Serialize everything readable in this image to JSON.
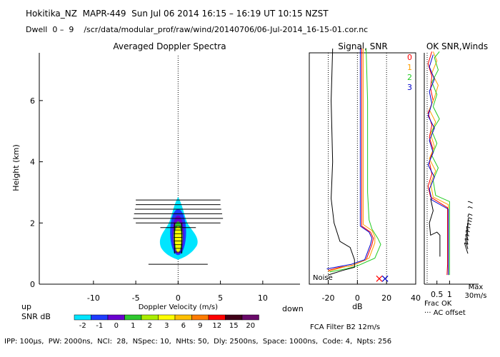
{
  "header": {
    "title": "Hokitika_NZ  MAPR-449  Sun Jul 06 2014 16:15 – 16:19 UT 10:15 NZST",
    "dwell": "Dwell  0 –  9    /scr/data/modular_prof/raw/wind/20140706/06-Jul-2014_16-15-01.cor.nc"
  },
  "colors": {
    "snr_scale": [
      "#00e5ff",
      "#1e3cff",
      "#6a00d0",
      "#2ec82e",
      "#aaee00",
      "#ffff00",
      "#ffc000",
      "#ff7b00",
      "#ff0000",
      "#400018",
      "#6a0a6a"
    ],
    "series": [
      "#ff0000",
      "#ffa000",
      "#22cc22",
      "#0000cc"
    ]
  },
  "labels": {
    "spectra_title": "Averaged Doppler Spectra",
    "signal_title": "Signal, SNR",
    "ok_title": "OK SNR,Winds",
    "up": "up",
    "down": "down",
    "snr_db": "SNR dB",
    "doppler_xlabel": "Doppler Velocity (m/s)",
    "height_ylabel": "Height (km)",
    "db_xlabel": "dB",
    "noise": "Noise",
    "frac_ok": "Frac OK",
    "ac_offset": "··· AC offset",
    "max": "Max",
    "max_speed": "30m/s",
    "fca_filter": "FCA Filter B2 12m/s"
  },
  "footer": "IPP: 100μs,  PW: 2000ns,  NCI:  28,  NSpec: 10,  NHts: 50,  Dly: 2500ns,  Space: 1000ns,  Code: 4,  Npts: 256",
  "chart_data": [
    {
      "type": "heatmap",
      "title": "Averaged Doppler Spectra",
      "xlabel": "Doppler Velocity (m/s)",
      "ylabel": "Height (km)",
      "xlim": [
        -16.4,
        14.4
      ],
      "ylim": [
        0,
        7.7
      ],
      "xticks": [
        -10,
        -5,
        0,
        5,
        10
      ],
      "yticks": [
        0,
        2,
        4,
        6
      ],
      "left_label": "up",
      "right_label": "down",
      "colorbar": {
        "label": "SNR dB",
        "ticks": [
          "-2",
          "-1",
          "0",
          "1",
          "2",
          "3",
          "6",
          "9",
          "12",
          "15",
          "20"
        ]
      },
      "spectra_widths": [
        {
          "height": 0.65,
          "half_width": 3.5
        },
        {
          "height": 1.85,
          "half_width": 2.1
        },
        {
          "height": 2.0,
          "half_width": 5.0
        },
        {
          "height": 2.15,
          "half_width": 5.3
        },
        {
          "height": 2.3,
          "half_width": 5.2
        },
        {
          "height": 2.45,
          "half_width": 5.1
        },
        {
          "height": 2.6,
          "half_width": 5.0
        },
        {
          "height": 2.75,
          "half_width": 5.0
        }
      ],
      "zero_line": 0
    },
    {
      "type": "line",
      "title": "Signal, SNR",
      "xlabel": "dB",
      "xlim": [
        -33,
        40
      ],
      "ylim": [
        0,
        7.7
      ],
      "xticks": [
        -20,
        0,
        20,
        40
      ],
      "dotted_x": [
        -20,
        0,
        20
      ],
      "series": [
        {
          "name": "0",
          "points": [
            [
              -20,
              0.45
            ],
            [
              -12,
              0.55
            ],
            [
              -4,
              0.6
            ],
            [
              6,
              0.8
            ],
            [
              10,
              1.3
            ],
            [
              11,
              1.5
            ],
            [
              9,
              1.7
            ],
            [
              3,
              1.9
            ],
            [
              3,
              2.2
            ],
            [
              3,
              3
            ],
            [
              3,
              6
            ],
            [
              3,
              7.7
            ]
          ]
        },
        {
          "name": "1",
          "points": [
            [
              -20,
              0.42
            ],
            [
              -10,
              0.55
            ],
            [
              -3,
              0.62
            ],
            [
              8,
              0.85
            ],
            [
              12,
              1.35
            ],
            [
              12,
              1.55
            ],
            [
              10,
              1.75
            ],
            [
              4,
              1.95
            ],
            [
              4,
              2.3
            ],
            [
              4,
              3
            ],
            [
              4,
              6
            ],
            [
              4,
              7.7
            ]
          ]
        },
        {
          "name": "2",
          "points": [
            [
              -19,
              0.4
            ],
            [
              -8,
              0.5
            ],
            [
              0,
              0.6
            ],
            [
              12,
              0.85
            ],
            [
              16,
              1.3
            ],
            [
              14,
              1.5
            ],
            [
              10,
              1.8
            ],
            [
              8,
              2.1
            ],
            [
              7,
              3
            ],
            [
              7,
              6
            ],
            [
              6,
              7.7
            ]
          ]
        },
        {
          "name": "3",
          "points": [
            [
              -21,
              0.5
            ],
            [
              -12,
              0.58
            ],
            [
              -4,
              0.65
            ],
            [
              5,
              0.8
            ],
            [
              9,
              1.3
            ],
            [
              10,
              1.5
            ],
            [
              8,
              1.7
            ],
            [
              2,
              1.9
            ],
            [
              2,
              2.2
            ],
            [
              2,
              3
            ],
            [
              2,
              6
            ],
            [
              2,
              7.7
            ]
          ]
        },
        {
          "name": "Noise",
          "points": [
            [
              -20,
              0.3
            ],
            [
              -10,
              0.45
            ],
            [
              -2,
              0.55
            ],
            [
              -2,
              0.8
            ],
            [
              -5,
              1.2
            ],
            [
              -12,
              1.4
            ],
            [
              -16,
              2
            ],
            [
              -18,
              2.8
            ],
            [
              -17,
              4
            ],
            [
              -18,
              6
            ],
            [
              -17,
              7.7
            ]
          ]
        }
      ],
      "markers": [
        {
          "x": 15,
          "y": 0.18,
          "color": "#ff0000"
        },
        {
          "x": 19,
          "y": 0.18,
          "color": "#0000cc"
        }
      ]
    },
    {
      "type": "line",
      "title": "OK SNR,Winds",
      "xlabel": "Frac OK",
      "xlim": [
        0,
        1.3
      ],
      "ylim": [
        0,
        7.7
      ],
      "xticks": [
        0.5,
        1
      ],
      "xticklabels": [
        "0.5",
        "1"
      ],
      "legend": [
        "0",
        "1",
        "2",
        "3"
      ],
      "legend_placement": "top-right",
      "series": [
        {
          "name": "0",
          "points": [
            [
              0.9,
              0.3
            ],
            [
              0.92,
              0.65
            ],
            [
              0.92,
              2.5
            ],
            [
              0.25,
              2.85
            ],
            [
              0.15,
              3.2
            ],
            [
              0.3,
              3.6
            ],
            [
              0.2,
              4.0
            ],
            [
              0.35,
              4.4
            ],
            [
              0.2,
              4.8
            ],
            [
              0.3,
              5.2
            ],
            [
              0.15,
              5.6
            ],
            [
              0.35,
              6.0
            ],
            [
              0.25,
              6.4
            ],
            [
              0.3,
              6.8
            ],
            [
              0.15,
              7.2
            ],
            [
              0.3,
              7.6
            ]
          ]
        },
        {
          "name": "1",
          "points": [
            [
              0.95,
              0.3
            ],
            [
              0.95,
              0.65
            ],
            [
              0.95,
              2.6
            ],
            [
              0.35,
              2.85
            ],
            [
              0.25,
              3.3
            ],
            [
              0.45,
              3.7
            ],
            [
              0.2,
              4.1
            ],
            [
              0.4,
              4.5
            ],
            [
              0.25,
              4.9
            ],
            [
              0.45,
              5.3
            ],
            [
              0.2,
              5.7
            ],
            [
              0.4,
              6.1
            ],
            [
              0.55,
              6.5
            ],
            [
              0.3,
              6.9
            ],
            [
              0.5,
              7.3
            ],
            [
              0.35,
              7.6
            ]
          ]
        },
        {
          "name": "2",
          "points": [
            [
              1.0,
              0.3
            ],
            [
              1.0,
              0.65
            ],
            [
              1.0,
              2.7
            ],
            [
              0.45,
              2.9
            ],
            [
              0.35,
              3.4
            ],
            [
              0.55,
              3.8
            ],
            [
              0.3,
              4.2
            ],
            [
              0.5,
              4.6
            ],
            [
              0.3,
              5.0
            ],
            [
              0.6,
              5.4
            ],
            [
              0.35,
              5.8
            ],
            [
              0.5,
              6.2
            ],
            [
              0.3,
              6.6
            ],
            [
              0.55,
              7.0
            ],
            [
              0.4,
              7.4
            ],
            [
              0.6,
              7.6
            ]
          ]
        },
        {
          "name": "3",
          "points": [
            [
              0.95,
              0.3
            ],
            [
              0.95,
              0.65
            ],
            [
              0.95,
              2.45
            ],
            [
              0.3,
              2.75
            ],
            [
              0.2,
              3.1
            ],
            [
              0.4,
              3.5
            ],
            [
              0.15,
              3.9
            ],
            [
              0.35,
              4.3
            ],
            [
              0.2,
              4.7
            ],
            [
              0.4,
              5.1
            ],
            [
              0.15,
              5.5
            ],
            [
              0.3,
              5.9
            ],
            [
              0.2,
              6.3
            ],
            [
              0.4,
              6.7
            ],
            [
              0.2,
              7.1
            ],
            [
              0.35,
              7.5
            ]
          ]
        },
        {
          "name": "AC offset",
          "points": [
            [
              0.62,
              0.9
            ],
            [
              0.62,
              1.6
            ],
            [
              0.5,
              1.7
            ],
            [
              0.25,
              1.6
            ],
            [
              0.2,
              2.0
            ],
            [
              0.35,
              2.4
            ],
            [
              0.25,
              2.8
            ]
          ]
        }
      ],
      "wind_barbs": [
        {
          "height": 1.0,
          "dir": 200
        },
        {
          "height": 1.15,
          "dir": 205
        },
        {
          "height": 1.3,
          "dir": 210
        },
        {
          "height": 1.45,
          "dir": 215
        },
        {
          "height": 1.6,
          "dir": 220
        },
        {
          "height": 1.75,
          "dir": 230
        },
        {
          "height": 1.9,
          "dir": 240
        },
        {
          "height": 2.05,
          "dir": 250
        },
        {
          "height": 2.2,
          "dir": 255
        },
        {
          "height": 2.5,
          "dir": 265
        },
        {
          "height": 2.7,
          "dir": 270
        }
      ]
    }
  ]
}
